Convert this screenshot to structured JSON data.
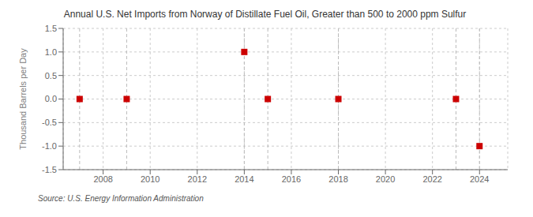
{
  "chart_data": {
    "type": "scatter",
    "title": "Annual U.S. Net Imports from Norway of Distillate Fuel Oil, Greater than 500 to 2000 ppm Sulfur",
    "ylabel": "Thousand Barrels per Day",
    "source": "Source: U.S. Energy Information Administration",
    "x": [
      2007,
      2009,
      2014,
      2015,
      2018,
      2023,
      2024
    ],
    "values": [
      0.0,
      0.0,
      1.0,
      0.0,
      0.0,
      0.0,
      -1.0
    ],
    "color": "#cc0000",
    "marker": "square",
    "xlim": [
      2006.3,
      2025.2
    ],
    "ylim": [
      -1.5,
      1.5
    ],
    "xticks": [
      2008,
      2010,
      2012,
      2014,
      2016,
      2018,
      2020,
      2022,
      2024
    ],
    "yticks": [
      -1.5,
      {
        "value": -1.0,
        "label": "-1.0"
      },
      -0.5,
      {
        "value": 0.0,
        "label": "0.0"
      },
      0.5,
      {
        "value": 1.0,
        "label": "1.0"
      },
      1.5
    ],
    "grid": true
  }
}
